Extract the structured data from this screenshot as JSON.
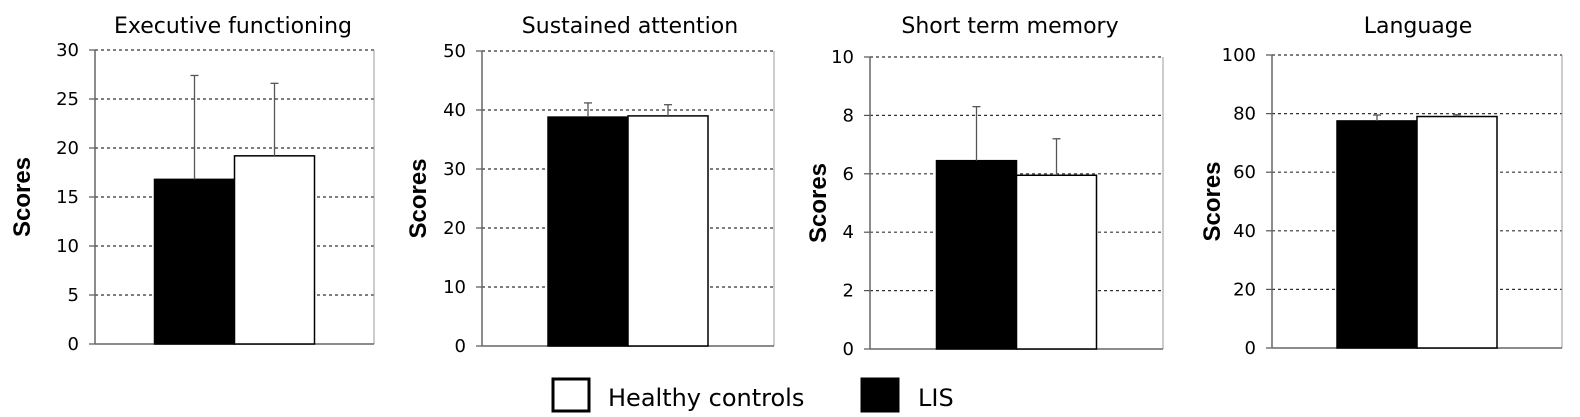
{
  "chart_data": [
    {
      "type": "bar",
      "title": "Executive functioning",
      "ylabel": "Scores",
      "xlabel": "",
      "ylim": [
        0,
        30
      ],
      "yticks": [
        "0",
        "5",
        "10",
        "15",
        "20",
        "25",
        "30"
      ],
      "grid": "horizontal dashed",
      "series": [
        {
          "name": "LIS",
          "value": 16.8,
          "error": 10.6,
          "color": "#000000"
        },
        {
          "name": "Healthy controls",
          "value": 19.2,
          "error": 7.4,
          "color": "#ffffff"
        }
      ]
    },
    {
      "type": "bar",
      "title": "Sustained attention",
      "ylabel": "Scores",
      "xlabel": "",
      "ylim": [
        0,
        50
      ],
      "yticks": [
        "0",
        "10",
        "20",
        "30",
        "40",
        "50"
      ],
      "grid": "horizontal dashed",
      "series": [
        {
          "name": "LIS",
          "value": 38.8,
          "error": 2.4,
          "color": "#000000"
        },
        {
          "name": "Healthy controls",
          "value": 39.0,
          "error": 1.9,
          "color": "#ffffff"
        }
      ]
    },
    {
      "type": "bar",
      "title": "Short term memory",
      "ylabel": "Scores",
      "xlabel": "",
      "ylim": [
        0,
        10
      ],
      "yticks": [
        "0",
        "2",
        "4",
        "6",
        "8",
        "10"
      ],
      "grid": "horizontal dashed",
      "series": [
        {
          "name": "LIS",
          "value": 6.45,
          "error": 1.85,
          "color": "#000000"
        },
        {
          "name": "Healthy controls",
          "value": 5.95,
          "error": 1.25,
          "color": "#ffffff"
        }
      ]
    },
    {
      "type": "bar",
      "title": "Language",
      "ylabel": "Scores",
      "xlabel": "",
      "ylim": [
        0,
        100
      ],
      "yticks": [
        "0",
        "20",
        "40",
        "60",
        "80",
        "100"
      ],
      "grid": "horizontal dashed",
      "series": [
        {
          "name": "LIS",
          "value": 77.5,
          "error": 2.0,
          "color": "#000000"
        },
        {
          "name": "Healthy controls",
          "value": 79.0,
          "error": 0.6,
          "color": "#ffffff"
        }
      ]
    }
  ],
  "legend": {
    "placement": "bottom-center",
    "items": [
      {
        "label": "Healthy controls",
        "color": "#ffffff"
      },
      {
        "label": "LIS",
        "color": "#000000"
      }
    ]
  }
}
